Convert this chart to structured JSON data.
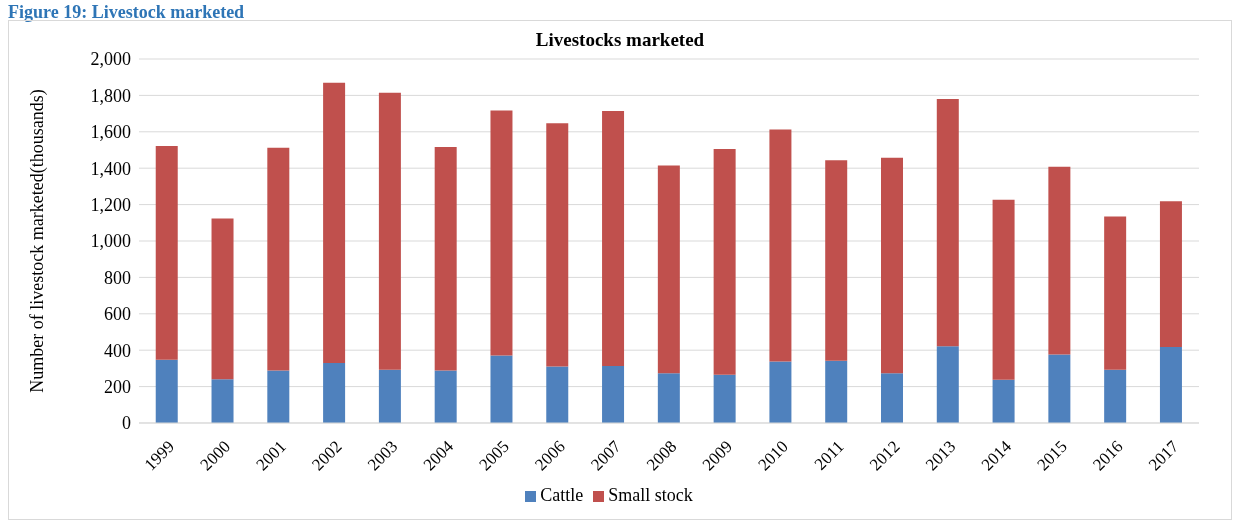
{
  "chart_data": {
    "type": "bar",
    "title": "Livestocks marketed",
    "ylabel": "Number of livestock marketed(thousands)",
    "annotations": [
      "Figure 19: Livestock marketed"
    ],
    "categories": [
      "1999",
      "2000",
      "2001",
      "2002",
      "2003",
      "2004",
      "2005",
      "2006",
      "2007",
      "2008",
      "2009",
      "2010",
      "2011",
      "2012",
      "2013",
      "2014",
      "2015",
      "2016",
      "2017"
    ],
    "stacked": true,
    "series": [
      {
        "name": "Cattle",
        "color": "#4f81bd",
        "values": [
          348,
          241,
          288,
          329,
          292,
          288,
          371,
          311,
          313,
          274,
          265,
          338,
          342,
          274,
          422,
          238,
          376,
          293,
          417
        ]
      },
      {
        "name": "Small stock",
        "color": "#c0504d",
        "values": [
          1174,
          882,
          1225,
          1541,
          1522,
          1229,
          1346,
          1336,
          1401,
          1141,
          1241,
          1274,
          1102,
          1184,
          1358,
          989,
          1032,
          841,
          801
        ]
      }
    ],
    "ylim": [
      0,
      2000
    ],
    "yticks": [
      0,
      200,
      400,
      600,
      800,
      {
        "value": 1000,
        "label": "1,000"
      },
      {
        "value": 1200,
        "label": "1,200"
      },
      {
        "value": 1400,
        "label": "1,400"
      },
      {
        "value": 1600,
        "label": "1,600"
      },
      {
        "value": 1800,
        "label": "1,800"
      },
      {
        "value": 2000,
        "label": "2,000"
      }
    ],
    "grid": "y",
    "legend": "bottom"
  }
}
